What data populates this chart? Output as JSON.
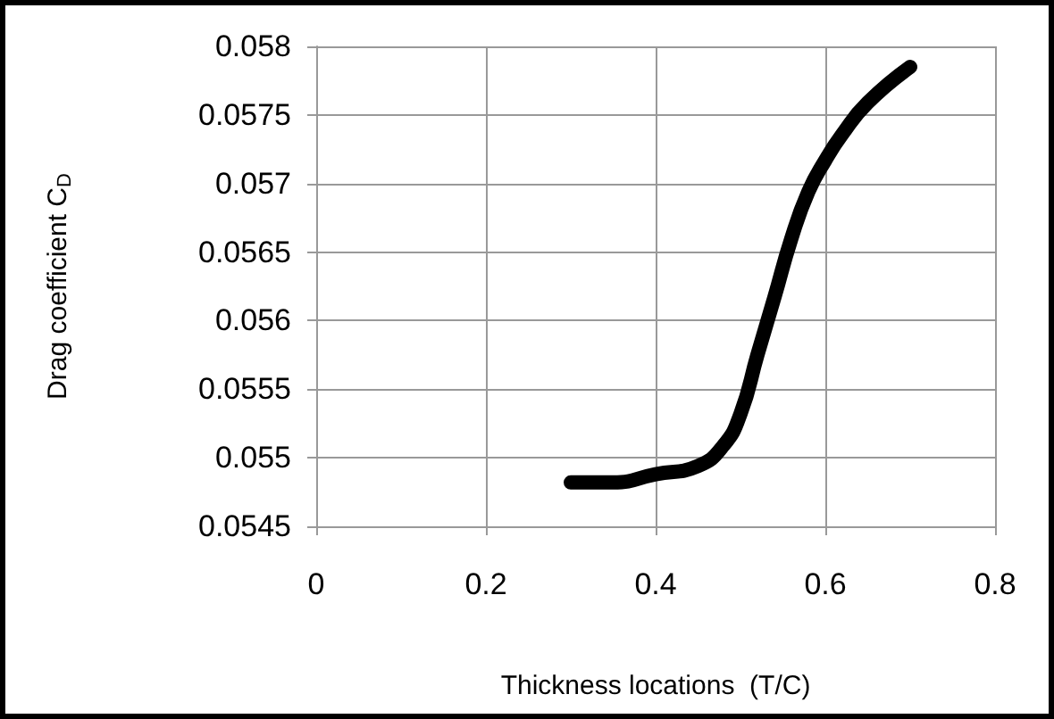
{
  "chart_data": {
    "type": "line",
    "xlabel": "Thickness locations  (T/C)",
    "ylabel": "Drag coefficient C$_{D}$",
    "x": [
      0.3,
      0.35,
      0.4,
      0.45,
      0.48,
      0.5,
      0.52,
      0.54,
      0.56,
      0.58,
      0.6,
      0.62,
      0.65,
      0.7
    ],
    "series": [
      {
        "color": "#000000",
        "values": [
          0.05482,
          0.05482,
          0.05488,
          0.05494,
          0.05509,
          0.05532,
          0.05575,
          0.05617,
          0.0566,
          0.05694,
          0.05717,
          0.05736,
          0.05759,
          0.05785
        ]
      }
    ],
    "xlim": [
      0,
      0.8
    ],
    "xticks": [
      0,
      0.2,
      0.4,
      0.6,
      0.8
    ],
    "ylim": [
      0.0545,
      0.058
    ],
    "yticks": [
      0.0545,
      0.055,
      0.0555,
      0.056,
      0.0565,
      0.057,
      0.0575,
      0.058
    ],
    "grid": true,
    "line_style": "solid"
  }
}
